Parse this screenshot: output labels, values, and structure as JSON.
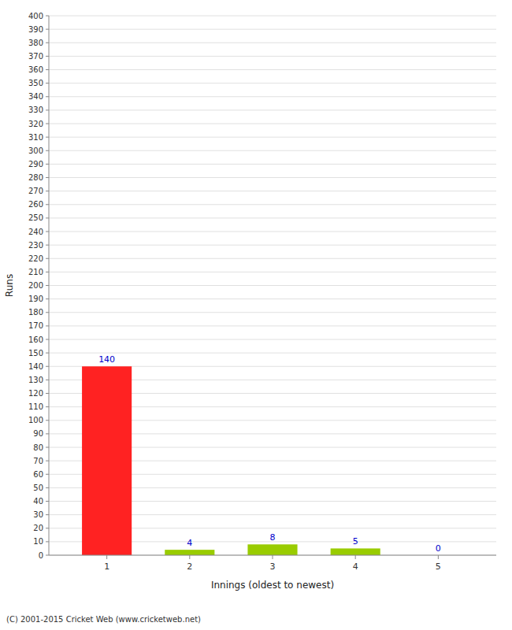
{
  "chart_data": {
    "type": "bar",
    "x": [
      1,
      2,
      3,
      4,
      5
    ],
    "values": [
      140,
      4,
      8,
      5,
      0
    ],
    "colors": [
      "#ff2222",
      "#99cc00",
      "#99cc00",
      "#99cc00",
      "#99cc00"
    ],
    "xlabel": "Innings (oldest to newest)",
    "ylabel": "Runs",
    "xlim": [
      0.3,
      5.7
    ],
    "xticks": [
      1,
      2,
      3,
      4,
      5
    ],
    "ylim": [
      0,
      400
    ],
    "yticks": [
      0,
      10,
      20,
      30,
      40,
      50,
      60,
      70,
      80,
      90,
      100,
      110,
      120,
      130,
      140,
      150,
      160,
      170,
      180,
      190,
      200,
      210,
      220,
      230,
      240,
      250,
      260,
      270,
      280,
      290,
      300,
      310,
      320,
      330,
      340,
      350,
      360,
      370,
      380,
      390,
      400
    ],
    "grid": true,
    "data_labels": true,
    "annotations": [
      "(C) 2001-2015 Cricket Web (www.cricketweb.net)"
    ]
  }
}
